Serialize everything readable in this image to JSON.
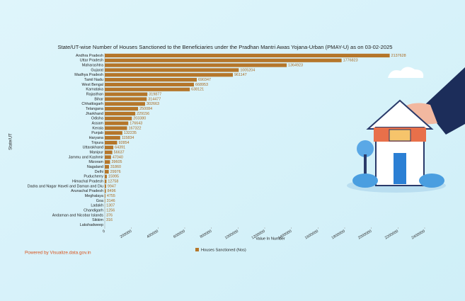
{
  "chart_data": {
    "type": "hbar",
    "title": "State/UT-wise Number of Houses Sanctioned to the Beneficiaries under the Pradhan Mantri Awas Yojana-Urban (PMAY-U) as on 03-02-2025",
    "y_label": "State/UT",
    "x_label": "Value In Number",
    "credit": "Powered by Visualize.data.gov.in",
    "categories": [
      "Andhra Pradesh",
      "Uttar Pradesh",
      "Maharashtra",
      "Gujarat",
      "Madhya Pradesh",
      "Tamil Nadu",
      "West Bengal",
      "Karnataka",
      "Rajasthan",
      "Bihar",
      "Chhattisgarh",
      "Telangana",
      "Jharkhand",
      "Odisha",
      "Assam",
      "Kerala",
      "Punjab",
      "Haryana",
      "Tripura",
      "Uttarakhand",
      "Manipur",
      "Jammu and Kashmir",
      "Mizoram",
      "Nagaland",
      "Delhi",
      "Puducherry",
      "Himachal Pradesh",
      "Dadra and Nagar Haveli and Daman and Diu",
      "Arunachal Pradesh",
      "Meghalaya",
      "Goa",
      "Ladakh",
      "Chandigarh",
      "Andaman and Nicobar Islands",
      "Sikkim",
      "Lakshadweep"
    ],
    "series": [
      {
        "name": "Houses Sanctioned (Nos)",
        "color": "#b5762a",
        "values": [
          2137628,
          1776823,
          1364923,
          1005204,
          961147,
          690347,
          668953,
          638121,
          319877,
          314477,
          302663,
          250084,
          229156,
          203380,
          176643,
          167322,
          132235,
          115834,
          92854,
          64391,
          56637,
          47040,
          39605,
          31860,
          29976,
          15995,
          12758,
          9947,
          8496,
          4755,
          3146,
          1307,
          1256,
          376,
          316,
          null
        ]
      }
    ],
    "xlim": [
      0,
      2400000
    ],
    "xticks": [
      0,
      200000,
      400000,
      600000,
      800000,
      1000000,
      1200000,
      1400000,
      1600000,
      1800000,
      2000000,
      2200000,
      2400000
    ],
    "legend": "bottom"
  }
}
